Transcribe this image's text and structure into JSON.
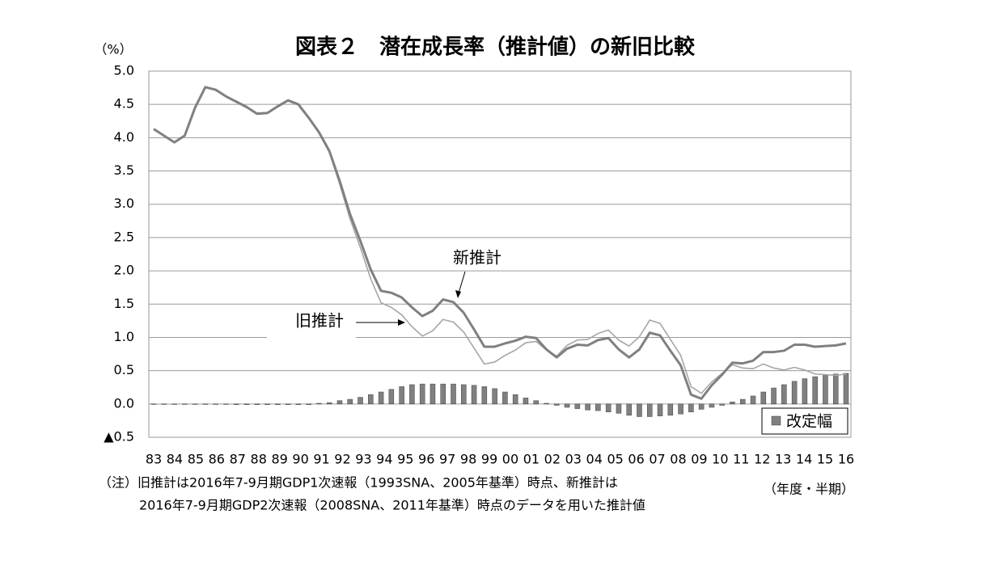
{
  "chart_data": {
    "type": "combo",
    "title": "図表２　潜在成長率（推計値）の新旧比較",
    "y_unit": "（%）",
    "x_unit": "（年度・半期）",
    "notes": [
      "（注）旧推計は2016年7-9月期GDP1次速報（1993SNA、2005年基準）時点、新推計は",
      "2016年7-9月期GDP2次速報（2008SNA、2011年基準）時点のデータを用いた推計値"
    ],
    "categories": [
      "83",
      null,
      "84",
      null,
      "85",
      null,
      "86",
      null,
      "87",
      null,
      "88",
      null,
      "89",
      null,
      "90",
      null,
      "91",
      null,
      "92",
      null,
      "93",
      null,
      "94",
      null,
      "95",
      null,
      "96",
      null,
      "97",
      null,
      "98",
      null,
      "99",
      null,
      "00",
      null,
      "01",
      null,
      "02",
      null,
      "03",
      null,
      "04",
      null,
      "05",
      null,
      "06",
      null,
      "07",
      null,
      "08",
      null,
      "09",
      null,
      "10",
      null,
      "11",
      null,
      "12",
      null,
      "13",
      null,
      "14",
      null,
      "15",
      null,
      "16",
      null
    ],
    "ylim": [
      -0.5,
      5
    ],
    "yticks": [
      {
        "value": -0.5,
        "label": "▲0.5"
      },
      {
        "value": 0,
        "label": "0.0"
      },
      0.5,
      {
        "value": 1,
        "label": "1.0"
      },
      1.5,
      {
        "value": 2,
        "label": "2.0"
      },
      2.5,
      {
        "value": 3,
        "label": "3.0"
      },
      3.5,
      {
        "value": 4,
        "label": "4.0"
      },
      4.5,
      {
        "value": 5,
        "label": "5.0"
      }
    ],
    "grid": true,
    "legend": "lower right",
    "series": [
      {
        "name": "新推計",
        "type": "line",
        "color": "#808080",
        "values": [
          4.13,
          4.03,
          3.93,
          4.03,
          4.45,
          4.76,
          4.72,
          4.62,
          4.54,
          4.46,
          4.36,
          4.37,
          4.47,
          4.56,
          4.5,
          4.3,
          4.08,
          3.8,
          3.35,
          2.85,
          2.45,
          2.02,
          1.7,
          1.67,
          1.6,
          1.45,
          1.32,
          1.4,
          1.57,
          1.53,
          1.37,
          1.12,
          0.86,
          0.86,
          0.91,
          0.95,
          1.01,
          0.99,
          0.82,
          0.7,
          0.83,
          0.89,
          0.88,
          0.96,
          0.99,
          0.82,
          0.7,
          0.82,
          1.07,
          1.03,
          0.8,
          0.58,
          0.14,
          0.08,
          0.28,
          0.44,
          0.62,
          0.61,
          0.65,
          0.78,
          0.78,
          0.8,
          0.89,
          0.89,
          0.86,
          0.87,
          0.88,
          0.91
        ]
      },
      {
        "name": "旧推計",
        "type": "line",
        "color": "#a6a6a6",
        "values": [
          4.13,
          4.03,
          3.93,
          4.03,
          4.45,
          4.76,
          4.72,
          4.62,
          4.55,
          4.47,
          4.37,
          4.38,
          4.48,
          4.57,
          4.51,
          4.31,
          4.07,
          3.78,
          3.3,
          2.78,
          2.35,
          1.88,
          1.52,
          1.45,
          1.34,
          1.16,
          1.02,
          1.1,
          1.27,
          1.23,
          1.08,
          0.84,
          0.6,
          0.63,
          0.73,
          0.81,
          0.92,
          0.94,
          0.81,
          0.72,
          0.88,
          0.96,
          0.97,
          1.06,
          1.11,
          0.96,
          0.87,
          1.01,
          1.26,
          1.21,
          0.97,
          0.73,
          0.26,
          0.16,
          0.33,
          0.46,
          0.59,
          0.54,
          0.53,
          0.6,
          0.54,
          0.51,
          0.55,
          0.51,
          0.45,
          0.44,
          0.43,
          0.45
        ]
      },
      {
        "name": "改定幅",
        "type": "bar",
        "color": "#808080",
        "values": [
          0,
          0,
          0,
          0,
          0,
          0,
          0,
          0,
          -0.01,
          -0.01,
          -0.01,
          -0.01,
          -0.01,
          -0.01,
          -0.01,
          -0.01,
          0.01,
          0.02,
          0.05,
          0.07,
          0.1,
          0.14,
          0.18,
          0.22,
          0.26,
          0.29,
          0.3,
          0.3,
          0.3,
          0.3,
          0.29,
          0.28,
          0.26,
          0.23,
          0.18,
          0.14,
          0.09,
          0.05,
          0.01,
          -0.02,
          -0.05,
          -0.07,
          -0.09,
          -0.1,
          -0.12,
          -0.14,
          -0.17,
          -0.19,
          -0.19,
          -0.18,
          -0.17,
          -0.15,
          -0.12,
          -0.08,
          -0.05,
          -0.02,
          0.03,
          0.07,
          0.12,
          0.18,
          0.24,
          0.29,
          0.34,
          0.38,
          0.41,
          0.43,
          0.45,
          0.46
        ]
      }
    ]
  }
}
